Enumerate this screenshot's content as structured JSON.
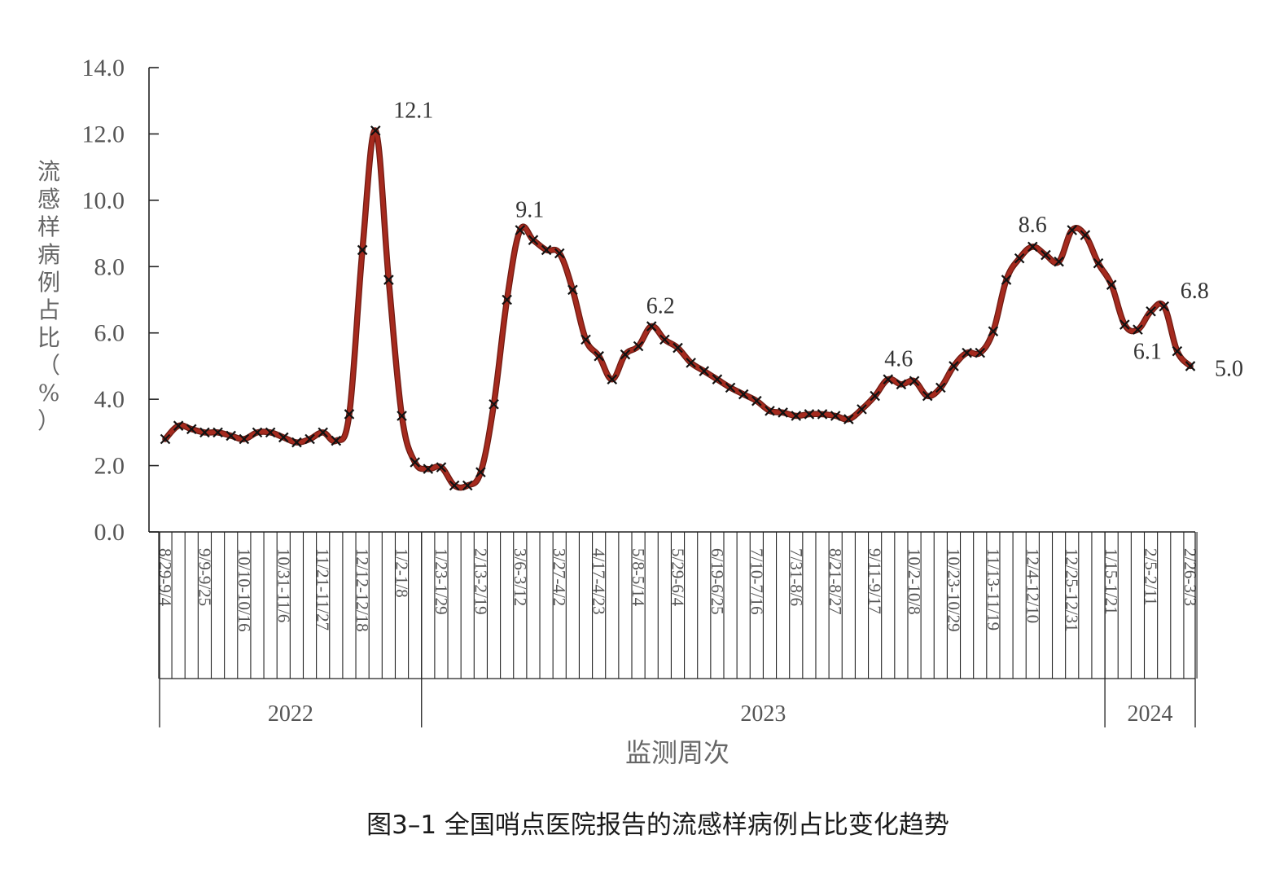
{
  "caption": "图3–1 全国哨点医院报告的流感样病例占比变化趋势",
  "chart_data": {
    "type": "line",
    "ylabel": "流感样病例占比（%）",
    "xlabel": "监测周次",
    "ylim": [
      0,
      14
    ],
    "yticks": [
      "0.0",
      "2.0",
      "4.0",
      "6.0",
      "8.0",
      "10.0",
      "12.0",
      "14.0"
    ],
    "line_color": "#a52a1e",
    "marker": "x",
    "x_tick_labels": [
      "8/29-9/4",
      "9/9-9/25",
      "10/10-10/16",
      "10/31-11/6",
      "11/21-11/27",
      "12/12-12/18",
      "1/2-1/8",
      "1/23-1/29",
      "2/13-2/19",
      "3/6-3/12",
      "3/27-4/2",
      "4/17-4/23",
      "5/8-5/14",
      "5/29-6/4",
      "6/19-6/25",
      "7/10-7/16",
      "7/31-8/6",
      "8/21-8/27",
      "9/11-9/17",
      "10/2-10/8",
      "10/23-10/29",
      "11/13-11/19",
      "12/4-12/10",
      "12/25-12/31",
      "1/15-1/21",
      "2/5-2/11",
      "2/26-3/3"
    ],
    "years": [
      {
        "label": "2022",
        "start": 0,
        "end": 20
      },
      {
        "label": "2023",
        "start": 20,
        "end": 72
      },
      {
        "label": "2024",
        "start": 72,
        "end": 82
      }
    ],
    "values": [
      2.8,
      3.2,
      3.1,
      3.0,
      3.0,
      2.9,
      2.8,
      3.0,
      3.0,
      2.85,
      2.7,
      2.8,
      3.0,
      2.75,
      3.55,
      8.5,
      12.1,
      7.6,
      3.5,
      2.1,
      1.9,
      1.95,
      1.4,
      1.4,
      1.8,
      3.85,
      7.0,
      9.1,
      8.8,
      8.5,
      8.4,
      7.3,
      5.8,
      5.3,
      4.6,
      5.35,
      5.6,
      6.2,
      5.8,
      5.55,
      5.1,
      4.85,
      4.6,
      4.35,
      4.15,
      3.95,
      3.65,
      3.6,
      3.5,
      3.55,
      3.55,
      3.5,
      3.4,
      3.7,
      4.1,
      4.6,
      4.45,
      4.55,
      4.1,
      4.35,
      5.0,
      5.4,
      5.4,
      6.05,
      7.6,
      8.25,
      8.6,
      8.35,
      8.15,
      9.1,
      8.95,
      8.1,
      7.45,
      6.25,
      6.1,
      6.65,
      6.8,
      5.45,
      5.0
    ],
    "annotations": [
      {
        "index": 16,
        "label": "12.1"
      },
      {
        "index": 27,
        "label": "9.1"
      },
      {
        "index": 37,
        "label": "6.2"
      },
      {
        "index": 55,
        "label": "4.6"
      },
      {
        "index": 66,
        "label": "8.6"
      },
      {
        "index": 74,
        "label": "6.1"
      },
      {
        "index": 76,
        "label": "6.8"
      },
      {
        "index": 78,
        "label": "5.0"
      }
    ]
  }
}
